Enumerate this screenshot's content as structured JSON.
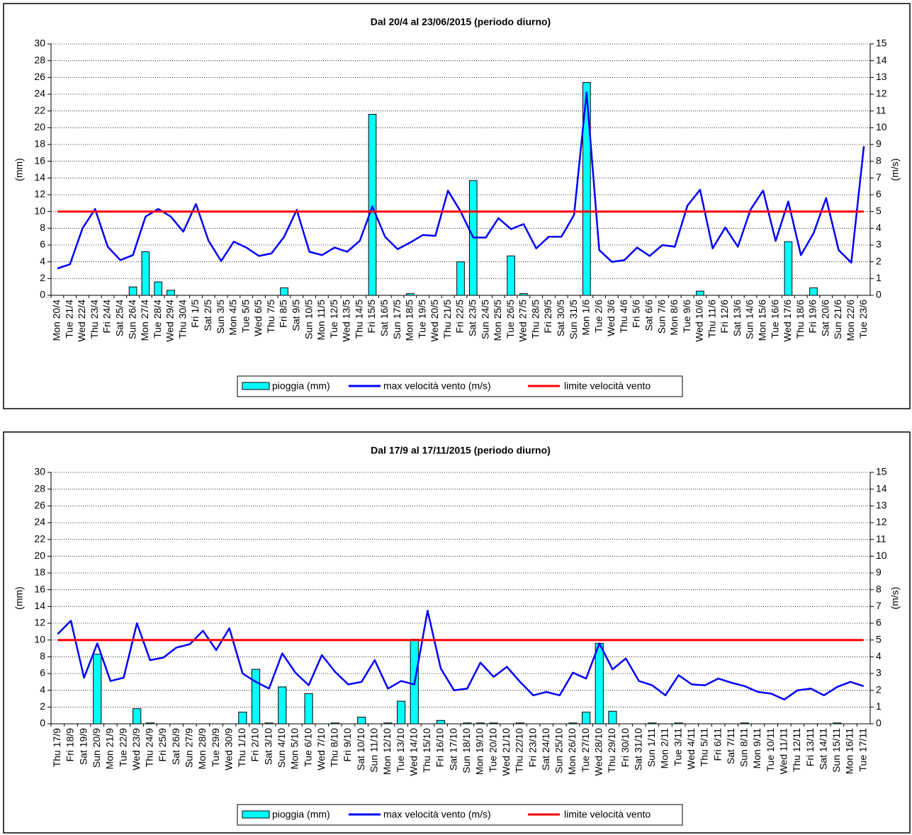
{
  "chart_data": [
    {
      "type": "combo",
      "title": "Dal 20/4 al 23/06/2015 (periodo diurno)",
      "ylabel": "(mm)",
      "y2label": "(m/s)",
      "categories": [
        "Mon 20/4",
        "Tue 21/4",
        "Wed 22/4",
        "Thu 23/4",
        "Fri 24/4",
        "Sat 25/4",
        "Sun 26/4",
        "Mon 27/4",
        "Tue 28/4",
        "Wed 29/4",
        "Thu 30/4",
        "Fri 1/5",
        "Sat 2/5",
        "Sun 3/5",
        "Mon 4/5",
        "Tue 5/5",
        "Wed 6/5",
        "Thu 7/5",
        "Fri 8/5",
        "Sat 9/5",
        "Sun 10/5",
        "Mon 11/5",
        "Tue 12/5",
        "Wed 13/5",
        "Thu 14/5",
        "Fri 15/5",
        "Sat 16/5",
        "Sun 17/5",
        "Mon 18/5",
        "Tue 19/5",
        "Wed 20/5",
        "Thu 21/5",
        "Fri 22/5",
        "Sat 23/5",
        "Sun 24/5",
        "Mon 25/5",
        "Tue 26/5",
        "Wed 27/5",
        "Thu 28/5",
        "Fri 29/5",
        "Sat 30/5",
        "Sun 31/5",
        "Mon 1/6",
        "Tue 2/6",
        "Wed 3/6",
        "Thu 4/6",
        "Fri 5/6",
        "Sat 6/6",
        "Sun 7/6",
        "Mon 8/6",
        "Tue 9/6",
        "Wed 10/6",
        "Thu 11/6",
        "Fri 12/6",
        "Sat 13/6",
        "Sun 14/6",
        "Mon 15/6",
        "Tue 16/6",
        "Wed 17/6",
        "Thu 18/6",
        "Fri 19/6",
        "Sat 20/6",
        "Sun 21/6",
        "Mon 22/6",
        "Tue 23/6"
      ],
      "series": [
        {
          "name": "pioggia (mm)",
          "type": "bar",
          "color": "#00ffff",
          "values": [
            0,
            0,
            0,
            0,
            0,
            0,
            1.0,
            5.2,
            1.6,
            0.6,
            0,
            0,
            0,
            0,
            0,
            0,
            0,
            0,
            0.9,
            0,
            0,
            0,
            0,
            0,
            0,
            21.6,
            0,
            0,
            0.2,
            0,
            0,
            0,
            4.0,
            13.7,
            0,
            0,
            4.7,
            0.2,
            0,
            0,
            0,
            0,
            25.4,
            0,
            0,
            0,
            0,
            0,
            0,
            0,
            0,
            0.5,
            0,
            0,
            0,
            0,
            0,
            0,
            6.4,
            0,
            0.9,
            0,
            0,
            0,
            0
          ]
        },
        {
          "name": "max velocità vento (m/s)",
          "type": "line",
          "axis": "y2",
          "color": "#0000ff",
          "values": [
            1.6,
            1.85,
            4.0,
            5.15,
            2.9,
            2.1,
            2.4,
            4.7,
            5.15,
            4.7,
            3.8,
            5.45,
            3.25,
            2.05,
            3.2,
            2.85,
            2.35,
            2.5,
            3.5,
            5.1,
            2.6,
            2.4,
            2.85,
            2.6,
            3.25,
            5.3,
            3.5,
            2.75,
            3.15,
            3.6,
            3.55,
            6.25,
            5.0,
            3.45,
            3.45,
            4.6,
            3.95,
            4.25,
            2.8,
            3.5,
            3.5,
            4.8,
            12.1,
            2.7,
            2.0,
            2.1,
            2.85,
            2.35,
            3.0,
            2.9,
            5.35,
            6.3,
            2.8,
            4.05,
            2.9,
            5.1,
            6.25,
            3.25,
            5.6,
            2.4,
            3.7,
            5.8,
            2.7,
            1.95,
            8.9
          ]
        },
        {
          "name": "limite velocità vento",
          "type": "line",
          "axis": "y2",
          "color": "#ff0000",
          "values": [
            5,
            5,
            5,
            5,
            5,
            5,
            5,
            5,
            5,
            5,
            5,
            5,
            5,
            5,
            5,
            5,
            5,
            5,
            5,
            5,
            5,
            5,
            5,
            5,
            5,
            5,
            5,
            5,
            5,
            5,
            5,
            5,
            5,
            5,
            5,
            5,
            5,
            5,
            5,
            5,
            5,
            5,
            5,
            5,
            5,
            5,
            5,
            5,
            5,
            5,
            5,
            5,
            5,
            5,
            5,
            5,
            5,
            5,
            5,
            5,
            5,
            5,
            5,
            5,
            5
          ]
        }
      ],
      "ylim": [
        0,
        30
      ],
      "yticks": [
        0,
        2,
        4,
        6,
        8,
        10,
        12,
        14,
        16,
        18,
        20,
        22,
        24,
        26,
        28,
        30
      ],
      "y2lim": [
        0,
        15
      ],
      "y2ticks": [
        0,
        1,
        2,
        3,
        4,
        5,
        6,
        7,
        8,
        9,
        10,
        11,
        12,
        13,
        14,
        15
      ],
      "grid": true,
      "legend": "bottom"
    },
    {
      "type": "combo",
      "title": "Dal 17/9 al 17/11/2015 (periodo diurno)",
      "ylabel": "(mm)",
      "y2label": "(m/s)",
      "categories": [
        "Thu 17/9",
        "Fri 18/9",
        "Sat 19/9",
        "Sun 20/9",
        "Mon 21/9",
        "Tue 22/9",
        "Wed 23/9",
        "Thu 24/9",
        "Fri 25/9",
        "Sat 26/9",
        "Sun 27/9",
        "Mon 28/9",
        "Tue 29/9",
        "Wed 30/9",
        "Thu 1/10",
        "Fri 2/10",
        "Sat 3/10",
        "Sun 4/10",
        "Mon 5/10",
        "Tue 6/10",
        "Wed 7/10",
        "Thu 8/10",
        "Fri 9/10",
        "Sat 10/10",
        "Sun 11/10",
        "Mon 12/10",
        "Tue 13/10",
        "Wed 14/10",
        "Thu 15/10",
        "Fri 16/10",
        "Sat 17/10",
        "Sun 18/10",
        "Mon 19/10",
        "Tue 20/10",
        "Wed 21/10",
        "Thu 22/10",
        "Fri 23/10",
        "Sat 24/10",
        "Sun 25/10",
        "Mon 26/10",
        "Tue 27/10",
        "Wed 28/10",
        "Thu 29/10",
        "Fri 30/10",
        "Sat 31/10",
        "Sun 1/11",
        "Mon 2/11",
        "Tue 3/11",
        "Wed 4/11",
        "Thu 5/11",
        "Fri 6/11",
        "Sat 7/11",
        "Sun 8/11",
        "Mon 9/11",
        "Tue 10/11",
        "Wed 11/11",
        "Thu 12/11",
        "Fri 13/11",
        "Sat 14/11",
        "Sun 15/11",
        "Mon 16/11",
        "Tue 17/11"
      ],
      "series": [
        {
          "name": "pioggia (mm)",
          "type": "bar",
          "color": "#00ffff",
          "values": [
            0,
            0,
            0,
            8.3,
            0,
            0,
            1.8,
            0.1,
            0,
            0,
            0,
            0,
            0,
            0,
            1.4,
            6.5,
            0.1,
            4.4,
            0,
            3.6,
            0,
            0.1,
            0,
            0.8,
            0,
            0.1,
            2.7,
            10.1,
            0,
            0.4,
            0,
            0.1,
            0.1,
            0.1,
            0,
            0.1,
            0,
            0,
            0,
            0.1,
            1.4,
            9.6,
            1.5,
            0,
            0,
            0.1,
            0,
            0.1,
            0,
            0,
            0,
            0,
            0.1,
            0,
            0,
            0,
            0,
            0,
            0,
            0.1,
            0,
            0
          ]
        },
        {
          "name": "max velocità vento (m/s)",
          "type": "line",
          "axis": "y2",
          "color": "#0000ff",
          "values": [
            5.35,
            6.15,
            2.75,
            4.8,
            2.55,
            2.75,
            6.0,
            3.8,
            3.95,
            4.55,
            4.75,
            5.55,
            4.4,
            5.7,
            3.0,
            2.5,
            2.1,
            4.2,
            3.05,
            2.3,
            4.1,
            3.1,
            2.35,
            2.5,
            3.8,
            2.1,
            2.55,
            2.35,
            6.75,
            3.3,
            2.0,
            2.1,
            3.65,
            2.8,
            3.4,
            2.5,
            1.7,
            1.9,
            1.7,
            3.05,
            2.7,
            4.8,
            3.25,
            3.9,
            2.55,
            2.3,
            1.7,
            2.9,
            2.35,
            2.3,
            2.7,
            2.45,
            2.25,
            1.9,
            1.8,
            1.45,
            2.0,
            2.1,
            1.7,
            2.2,
            2.5,
            2.25
          ]
        },
        {
          "name": "limite velocità vento",
          "type": "line",
          "axis": "y2",
          "color": "#ff0000",
          "values": [
            5,
            5,
            5,
            5,
            5,
            5,
            5,
            5,
            5,
            5,
            5,
            5,
            5,
            5,
            5,
            5,
            5,
            5,
            5,
            5,
            5,
            5,
            5,
            5,
            5,
            5,
            5,
            5,
            5,
            5,
            5,
            5,
            5,
            5,
            5,
            5,
            5,
            5,
            5,
            5,
            5,
            5,
            5,
            5,
            5,
            5,
            5,
            5,
            5,
            5,
            5,
            5,
            5,
            5,
            5,
            5,
            5,
            5,
            5,
            5,
            5,
            5
          ]
        }
      ],
      "ylim": [
        0,
        30
      ],
      "yticks": [
        0,
        2,
        4,
        6,
        8,
        10,
        12,
        14,
        16,
        18,
        20,
        22,
        24,
        26,
        28,
        30
      ],
      "y2lim": [
        0,
        15
      ],
      "y2ticks": [
        0,
        1,
        2,
        3,
        4,
        5,
        6,
        7,
        8,
        9,
        10,
        11,
        12,
        13,
        14,
        15
      ],
      "grid": true,
      "legend": "bottom"
    }
  ]
}
